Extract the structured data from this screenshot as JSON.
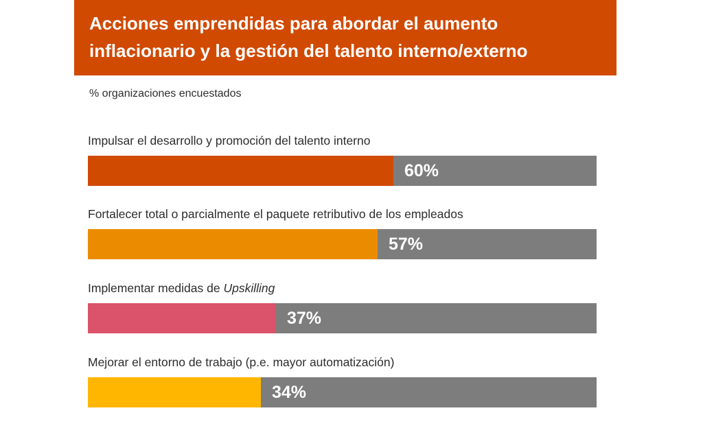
{
  "header": {
    "title_line1": "Acciones emprendidas para abordar el aumento",
    "title_line2": "inflacionario y la gestión del talento interno/externo",
    "color": "#d04a02"
  },
  "subtitle": "% organizaciones encuestados",
  "track_color": "#7d7d7d",
  "chart_data": {
    "type": "bar",
    "orientation": "horizontal",
    "title": "Acciones emprendidas para abordar el aumento inflacionario y la gestión del talento interno/externo",
    "subtitle": "% organizaciones encuestados",
    "xlim": [
      0,
      100
    ],
    "grid": false,
    "categories": [
      "Impulsar el desarrollo y promoción del talento interno",
      "Fortalecer total o parcialmente el paquete retributivo de los empleados",
      "Implementar medidas de Upskilling",
      "Mejorar el entorno de trabajo (p.e. mayor automatización)"
    ],
    "values": [
      60,
      57,
      37,
      34
    ],
    "value_labels": [
      "60%",
      "57%",
      "37%",
      "34%"
    ],
    "colors": [
      "#d04a02",
      "#eb8c00",
      "#db536a",
      "#ffb600"
    ]
  },
  "items": [
    {
      "label_text": "Impulsar el desarrollo y promoción del talento interno",
      "label_pre": "",
      "label_em": "",
      "value": 60,
      "value_label": "60%",
      "color": "#d04a02"
    },
    {
      "label_text": "Fortalecer total o parcialmente el paquete retributivo de los empleados",
      "label_pre": "",
      "label_em": "",
      "value": 57,
      "value_label": "57%",
      "color": "#eb8c00"
    },
    {
      "label_text": "",
      "label_pre": "Implementar medidas de ",
      "label_em": "Upskilling",
      "value": 37,
      "value_label": "37%",
      "color": "#db536a"
    },
    {
      "label_text": "Mejorar el entorno de trabajo (p.e. mayor automatización)",
      "label_pre": "",
      "label_em": "",
      "value": 34,
      "value_label": "34%",
      "color": "#ffb600"
    }
  ]
}
